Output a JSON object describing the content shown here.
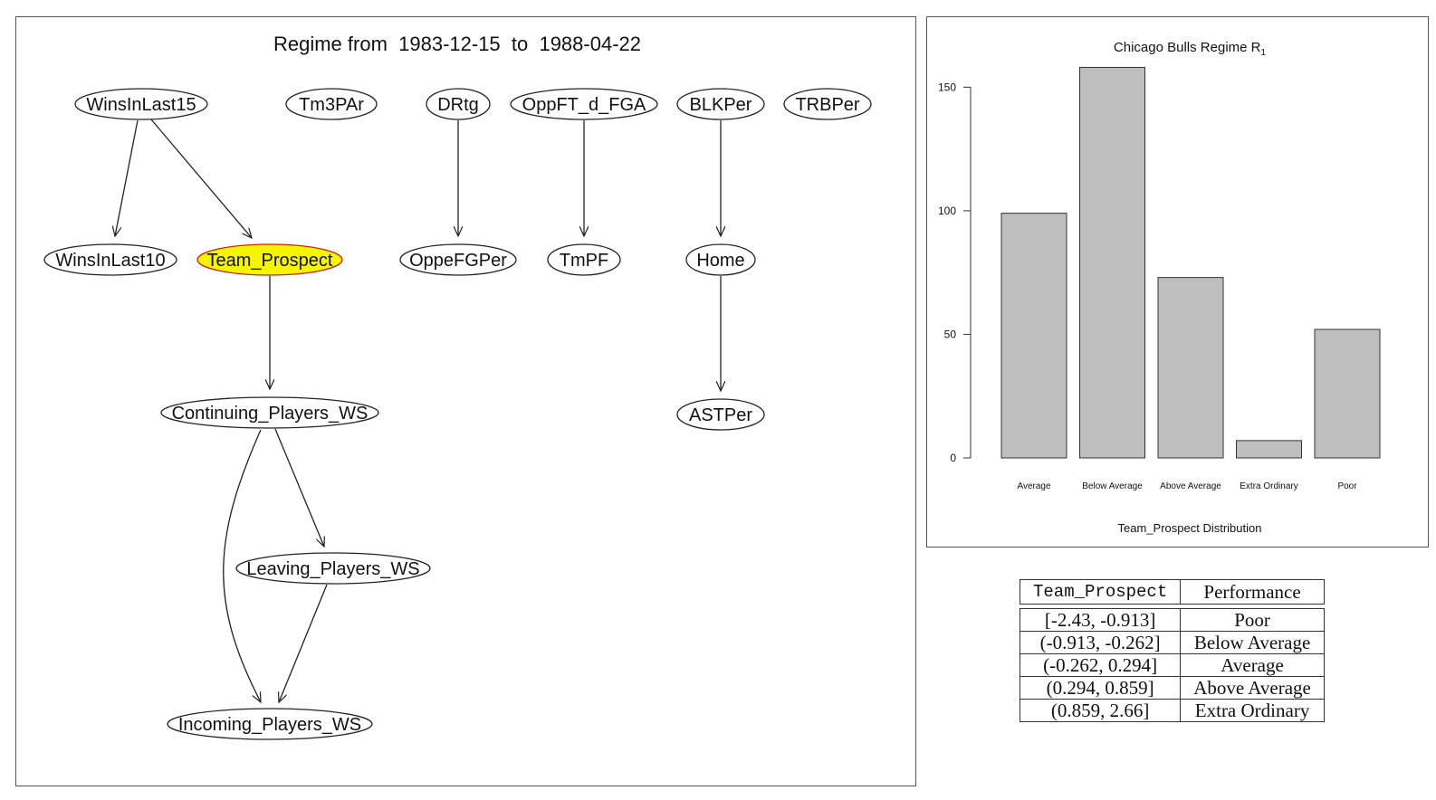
{
  "graph": {
    "title": "Regime from  1983-12-15  to  1988-04-22",
    "highlight_color": "#f5f500",
    "nodes": [
      {
        "id": "WinsInLast15",
        "label": "WinsInLast15"
      },
      {
        "id": "Tm3PAr",
        "label": "Tm3PAr"
      },
      {
        "id": "DRtg",
        "label": "DRtg"
      },
      {
        "id": "OppFT_d_FGA",
        "label": "OppFT_d_FGA"
      },
      {
        "id": "BLKPer",
        "label": "BLKPer"
      },
      {
        "id": "TRBPer",
        "label": "TRBPer"
      },
      {
        "id": "WinsInLast10",
        "label": "WinsInLast10"
      },
      {
        "id": "Team_Prospect",
        "label": "Team_Prospect",
        "highlighted": true
      },
      {
        "id": "OppeFGPer",
        "label": "OppeFGPer"
      },
      {
        "id": "TmPF",
        "label": "TmPF"
      },
      {
        "id": "Home",
        "label": "Home"
      },
      {
        "id": "Continuing_Players_WS",
        "label": "Continuing_Players_WS"
      },
      {
        "id": "ASTPer",
        "label": "ASTPer"
      },
      {
        "id": "Leaving_Players_WS",
        "label": "Leaving_Players_WS"
      },
      {
        "id": "Incoming_Players_WS",
        "label": "Incoming_Players_WS"
      }
    ],
    "edges": [
      {
        "from": "WinsInLast15",
        "to": "WinsInLast10"
      },
      {
        "from": "WinsInLast15",
        "to": "Team_Prospect"
      },
      {
        "from": "DRtg",
        "to": "OppeFGPer"
      },
      {
        "from": "OppFT_d_FGA",
        "to": "TmPF"
      },
      {
        "from": "BLKPer",
        "to": "Home"
      },
      {
        "from": "Home",
        "to": "ASTPer"
      },
      {
        "from": "Team_Prospect",
        "to": "Continuing_Players_WS"
      },
      {
        "from": "Continuing_Players_WS",
        "to": "Leaving_Players_WS"
      },
      {
        "from": "Continuing_Players_WS",
        "to": "Incoming_Players_WS"
      },
      {
        "from": "Leaving_Players_WS",
        "to": "Incoming_Players_WS"
      }
    ]
  },
  "chart_data": {
    "type": "bar",
    "title": "Chicago Bulls Regime R",
    "title_subscript": "1",
    "xlabel": "Team_Prospect Distribution",
    "ylabel": "",
    "categories": [
      "Average",
      "Below Average",
      "Above Average",
      "Extra Ordinary",
      "Poor"
    ],
    "values": [
      99,
      158,
      73,
      7,
      52
    ],
    "ylim": [
      0,
      160
    ],
    "yticks": [
      0,
      50,
      100,
      150
    ],
    "bar_color": "#bebebe",
    "grid": false
  },
  "table": {
    "headers": [
      "Team_Prospect",
      "Performance"
    ],
    "rows": [
      [
        "[-2.43, -0.913]",
        "Poor"
      ],
      [
        "(-0.913, -0.262]",
        "Below Average"
      ],
      [
        "(-0.262, 0.294]",
        "Average"
      ],
      [
        "(0.294, 0.859]",
        "Above Average"
      ],
      [
        "(0.859, 2.66]",
        "Extra Ordinary"
      ]
    ]
  }
}
